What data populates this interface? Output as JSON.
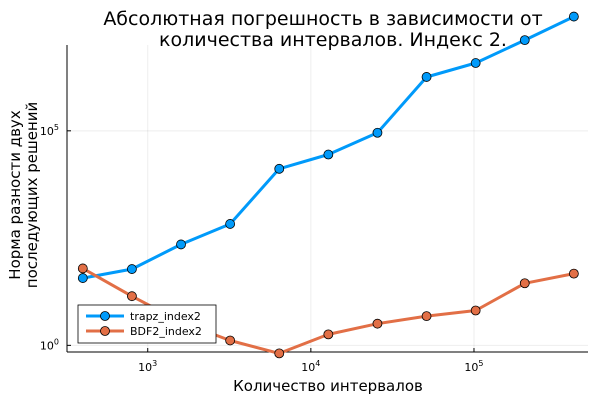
{
  "chart_data": {
    "type": "line",
    "title_line1": "Абсолютная погрешность в зависимости от",
    "title_line2": "количества интервалов. Индекс 2.",
    "xlabel": "Количество интервалов",
    "ylabel_line1": "Норма разности двух",
    "ylabel_line2": "последующих решений",
    "x_scale": "log10",
    "y_scale": "log10",
    "xlim": [
      320,
      500000
    ],
    "ylim": [
      0.7,
      10000000
    ],
    "grid": true,
    "legend_position": "bottom-left",
    "x_ticks": [
      {
        "value": 1000,
        "base": "10",
        "exp": "3"
      },
      {
        "value": 10000,
        "base": "10",
        "exp": "4"
      },
      {
        "value": 100000,
        "base": "10",
        "exp": "5"
      }
    ],
    "y_ticks": [
      {
        "value": 1,
        "base": "10",
        "exp": "0"
      },
      {
        "value": 100000,
        "base": "10",
        "exp": "5"
      }
    ],
    "x": [
      400,
      800,
      1600,
      3200,
      6400,
      12800,
      25600,
      51200,
      102400,
      204800,
      409600
    ],
    "series": [
      {
        "name": "trapz_index2",
        "color": "#009AFA",
        "values": [
          37,
          60,
          225,
          675,
          13000,
          28000,
          90000,
          1800000,
          3800000,
          13000000,
          46000000
        ]
      },
      {
        "name": "BDF2_index2",
        "color": "#E26F46",
        "values": [
          62,
          14,
          3.5,
          1.3,
          0.65,
          1.8,
          3.2,
          4.8,
          6.5,
          28,
          47
        ]
      }
    ]
  }
}
